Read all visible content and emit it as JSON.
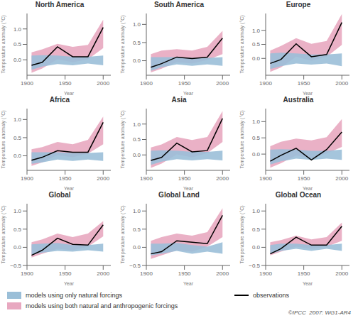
{
  "chart_data": [
    {
      "type": "line",
      "title": "North America",
      "xlabel": "Year",
      "ylabel": "Temperature anomaly (°C)",
      "x": [
        1906,
        1920,
        1940,
        1960,
        1980,
        2000
      ],
      "xlim": [
        1900,
        2010
      ],
      "xticks": [
        1900,
        1950,
        2000
      ],
      "ylim": [
        -0.5,
        1.5
      ],
      "yticks": [
        {
          "value": 0.0,
          "label": "0.0"
        },
        {
          "value": 0.5,
          "label": "0.5"
        },
        {
          "value": 1.0,
          "label": "1.0"
        }
      ],
      "series": [
        {
          "name": "models using both natural and anthropogenic forcings",
          "type": "band",
          "color": "#e8a8c0",
          "low": [
            -0.42,
            -0.28,
            0.02,
            -0.08,
            0.02,
            0.38
          ],
          "high": [
            0.24,
            0.34,
            0.52,
            0.42,
            0.48,
            1.3
          ]
        },
        {
          "name": "models using only natural forcings",
          "type": "band",
          "color": "#9bbfd8",
          "low": [
            -0.32,
            -0.22,
            -0.14,
            -0.18,
            -0.12,
            -0.18
          ],
          "high": [
            0.14,
            0.15,
            0.14,
            0.1,
            0.1,
            0.14
          ]
        },
        {
          "name": "observations",
          "type": "line",
          "color": "#000000",
          "values": [
            -0.18,
            -0.08,
            0.42,
            0.1,
            0.1,
            1.05
          ]
        }
      ]
    },
    {
      "type": "line",
      "title": "South America",
      "xlabel": "Year",
      "ylabel": "Temperature anomaly (°C)",
      "x": [
        1906,
        1920,
        1940,
        1960,
        1980,
        2000
      ],
      "xlim": [
        1900,
        2010
      ],
      "xticks": [
        1900,
        1950,
        2000
      ],
      "ylim": [
        -0.4,
        1.3
      ],
      "yticks": [
        {
          "value": 0.0,
          "label": "0.0"
        },
        {
          "value": 0.5,
          "label": "0.5"
        },
        {
          "value": 1.0,
          "label": "1.0"
        }
      ],
      "series": [
        {
          "name": "models using both natural and anthropogenic forcings",
          "type": "band",
          "color": "#e8a8c0",
          "low": [
            -0.32,
            -0.22,
            -0.04,
            -0.08,
            0.02,
            0.18
          ],
          "high": [
            0.18,
            0.28,
            0.32,
            0.28,
            0.38,
            0.82
          ]
        },
        {
          "name": "models using only natural forcings",
          "type": "band",
          "color": "#9bbfd8",
          "low": [
            -0.28,
            -0.18,
            -0.1,
            -0.14,
            -0.1,
            -0.14
          ],
          "high": [
            0.1,
            0.1,
            0.1,
            0.08,
            0.08,
            0.1
          ]
        },
        {
          "name": "observations",
          "type": "line",
          "color": "#000000",
          "values": [
            -0.18,
            -0.08,
            0.1,
            0.06,
            0.1,
            0.62
          ]
        }
      ]
    },
    {
      "type": "line",
      "title": "Europe",
      "xlabel": "Year",
      "ylabel": "Temperature anomaly (°C)",
      "x": [
        1906,
        1920,
        1940,
        1960,
        1980,
        2000
      ],
      "xlim": [
        1900,
        2010
      ],
      "xticks": [
        1900,
        1950,
        2000
      ],
      "ylim": [
        -0.6,
        1.6
      ],
      "yticks": [
        {
          "value": 0.0,
          "label": "0.0"
        },
        {
          "value": 0.5,
          "label": "0.5"
        },
        {
          "value": 1.0,
          "label": "1.0"
        }
      ],
      "series": [
        {
          "name": "models using both natural and anthropogenic forcings",
          "type": "band",
          "color": "#e8a8c0",
          "low": [
            -0.48,
            -0.32,
            0.06,
            -0.08,
            0.06,
            0.48
          ],
          "high": [
            0.28,
            0.44,
            0.72,
            0.52,
            0.62,
            1.58
          ]
        },
        {
          "name": "models using only natural forcings",
          "type": "band",
          "color": "#9bbfd8",
          "low": [
            -0.38,
            -0.28,
            -0.18,
            -0.22,
            -0.18,
            -0.28
          ],
          "high": [
            0.18,
            0.2,
            0.18,
            0.14,
            0.14,
            0.18
          ]
        },
        {
          "name": "observations",
          "type": "line",
          "color": "#000000",
          "values": [
            -0.18,
            -0.04,
            0.52,
            0.06,
            0.14,
            1.28
          ]
        }
      ]
    },
    {
      "type": "line",
      "title": "Africa",
      "xlabel": "Year",
      "ylabel": "Temperature anomaly (°C)",
      "x": [
        1906,
        1920,
        1940,
        1960,
        1980,
        2000
      ],
      "xlim": [
        1900,
        2010
      ],
      "xticks": [
        1900,
        1950,
        2000
      ],
      "ylim": [
        -0.4,
        1.3
      ],
      "yticks": [
        {
          "value": 0.0,
          "label": "0.0"
        },
        {
          "value": 0.5,
          "label": "0.5"
        },
        {
          "value": 1.0,
          "label": "1.0"
        }
      ],
      "series": [
        {
          "name": "models using both natural and anthropogenic forcings",
          "type": "band",
          "color": "#e8a8c0",
          "low": [
            -0.28,
            -0.18,
            0.02,
            -0.04,
            0.06,
            0.32
          ],
          "high": [
            0.18,
            0.24,
            0.38,
            0.32,
            0.44,
            1.08
          ]
        },
        {
          "name": "models using only natural forcings",
          "type": "band",
          "color": "#9bbfd8",
          "low": [
            -0.22,
            -0.18,
            -0.1,
            -0.14,
            -0.1,
            -0.14
          ],
          "high": [
            0.1,
            0.1,
            0.1,
            0.08,
            0.08,
            0.1
          ]
        },
        {
          "name": "observations",
          "type": "line",
          "color": "#000000",
          "values": [
            -0.12,
            -0.04,
            0.14,
            0.1,
            0.1,
            0.92
          ]
        }
      ]
    },
    {
      "type": "line",
      "title": "Asia",
      "xlabel": "Year",
      "ylabel": "Temperature anomaly (°C)",
      "x": [
        1906,
        1920,
        1940,
        1960,
        1980,
        2000
      ],
      "xlim": [
        1900,
        2010
      ],
      "xticks": [
        1900,
        1950,
        2000
      ],
      "ylim": [
        -0.5,
        1.5
      ],
      "yticks": [
        {
          "value": 0.0,
          "label": "0.0"
        },
        {
          "value": 0.5,
          "label": "0.5"
        },
        {
          "value": 1.0,
          "label": "1.0"
        }
      ],
      "series": [
        {
          "name": "models using both natural and anthropogenic forcings",
          "type": "band",
          "color": "#e8a8c0",
          "low": [
            -0.42,
            -0.28,
            0.02,
            -0.08,
            0.06,
            0.42
          ],
          "high": [
            0.24,
            0.34,
            0.58,
            0.48,
            0.58,
            1.42
          ]
        },
        {
          "name": "models using only natural forcings",
          "type": "band",
          "color": "#9bbfd8",
          "low": [
            -0.32,
            -0.22,
            -0.14,
            -0.18,
            -0.14,
            -0.18
          ],
          "high": [
            0.14,
            0.15,
            0.14,
            0.1,
            0.1,
            0.14
          ]
        },
        {
          "name": "observations",
          "type": "line",
          "color": "#000000",
          "values": [
            -0.18,
            -0.08,
            0.38,
            0.1,
            0.14,
            1.18
          ]
        }
      ]
    },
    {
      "type": "line",
      "title": "Australia",
      "xlabel": "Year",
      "ylabel": "Temperature anomaly (°C)",
      "x": [
        1906,
        1920,
        1940,
        1960,
        1980,
        2000
      ],
      "xlim": [
        1900,
        2010
      ],
      "xticks": [
        1900,
        1950,
        2000
      ],
      "ylim": [
        -0.5,
        1.4
      ],
      "yticks": [
        {
          "value": 0.0,
          "label": "0.0"
        },
        {
          "value": 0.5,
          "label": "0.5"
        },
        {
          "value": 1.0,
          "label": "1.0"
        }
      ],
      "series": [
        {
          "name": "models using both natural and anthropogenic forcings",
          "type": "band",
          "color": "#e8a8c0",
          "low": [
            -0.42,
            -0.28,
            -0.04,
            -0.14,
            0.02,
            0.22
          ],
          "high": [
            0.24,
            0.38,
            0.48,
            0.42,
            0.52,
            1.08
          ]
        },
        {
          "name": "models using only natural forcings",
          "type": "band",
          "color": "#9bbfd8",
          "low": [
            -0.32,
            -0.22,
            -0.14,
            -0.18,
            -0.14,
            -0.18
          ],
          "high": [
            0.14,
            0.15,
            0.14,
            0.1,
            0.1,
            0.14
          ]
        },
        {
          "name": "observations",
          "type": "line",
          "color": "#000000",
          "values": [
            -0.22,
            -0.04,
            0.18,
            -0.18,
            0.14,
            0.68
          ]
        }
      ]
    },
    {
      "type": "line",
      "title": "Global",
      "xlabel": "Year",
      "ylabel": "Temperature anomaly (°C)",
      "legend": "bottom",
      "annotation": "©IPCC  2007: WG1-AR4",
      "x": [
        1906,
        1920,
        1940,
        1960,
        1980,
        2000
      ],
      "xlim": [
        1900,
        2010
      ],
      "xticks": [
        1900,
        1950,
        2000
      ],
      "ylim": [
        -0.5,
        1.2
      ],
      "yticks": [
        {
          "value": -0.5,
          "label": "−0.5"
        },
        {
          "value": 0.0,
          "label": "0.0"
        },
        {
          "value": 0.5,
          "label": "0.5"
        },
        {
          "value": 1.0,
          "label": "1.0"
        }
      ],
      "series": [
        {
          "name": "models using both natural and anthropogenic forcings",
          "type": "band",
          "color": "#e8a8c0",
          "low": [
            -0.28,
            -0.18,
            -0.04,
            -0.08,
            0.02,
            0.3
          ],
          "high": [
            0.14,
            0.22,
            0.38,
            0.28,
            0.38,
            0.72
          ]
        },
        {
          "name": "models using only natural forcings",
          "type": "band",
          "color": "#9bbfd8",
          "low": [
            -0.2,
            -0.15,
            -0.1,
            -0.12,
            -0.08,
            -0.12
          ],
          "high": [
            0.08,
            0.1,
            0.12,
            0.06,
            0.06,
            0.1
          ]
        },
        {
          "name": "observations",
          "type": "line",
          "color": "#000000",
          "values": [
            -0.22,
            -0.08,
            0.25,
            0.08,
            0.06,
            0.62
          ]
        }
      ]
    },
    {
      "type": "line",
      "title": "Global Land",
      "xlabel": "Year",
      "ylabel": "Temperature anomaly (°C)",
      "x": [
        1906,
        1920,
        1940,
        1960,
        1980,
        2000
      ],
      "xlim": [
        1900,
        2010
      ],
      "xticks": [
        1900,
        1950,
        2000
      ],
      "ylim": [
        -0.5,
        1.2
      ],
      "yticks": [
        {
          "value": -0.5,
          "label": "−0.5"
        },
        {
          "value": 0.0,
          "label": "0.0"
        },
        {
          "value": 0.5,
          "label": "0.5"
        },
        {
          "value": 1.0,
          "label": "1.0"
        }
      ],
      "series": [
        {
          "name": "models using both natural and anthropogenic forcings",
          "type": "band",
          "color": "#e8a8c0",
          "low": [
            -0.32,
            -0.22,
            -0.08,
            -0.12,
            0.02,
            0.28
          ],
          "high": [
            0.18,
            0.28,
            0.38,
            0.32,
            0.42,
            1.08
          ]
        },
        {
          "name": "models using only natural forcings",
          "type": "band",
          "color": "#9bbfd8",
          "low": [
            -0.22,
            -0.18,
            -0.1,
            -0.18,
            -0.12,
            -0.18
          ],
          "high": [
            0.1,
            0.1,
            0.12,
            0.06,
            0.02,
            0.14
          ]
        },
        {
          "name": "observations",
          "type": "line",
          "color": "#000000",
          "values": [
            -0.18,
            -0.12,
            0.18,
            0.14,
            0.1,
            0.88
          ]
        }
      ]
    },
    {
      "type": "line",
      "title": "Global Ocean",
      "xlabel": "Year",
      "ylabel": "Temperature anomaly (°C)",
      "x": [
        1906,
        1920,
        1940,
        1960,
        1980,
        2000
      ],
      "xlim": [
        1900,
        2010
      ],
      "xticks": [
        1900,
        1950,
        2000
      ],
      "ylim": [
        -0.5,
        1.2
      ],
      "yticks": [
        {
          "value": -0.5,
          "label": "−0.5"
        },
        {
          "value": 0.0,
          "label": "0.0"
        },
        {
          "value": 0.5,
          "label": "0.5"
        },
        {
          "value": 1.0,
          "label": "1.0"
        }
      ],
      "series": [
        {
          "name": "models using both natural and anthropogenic forcings",
          "type": "band",
          "color": "#e8a8c0",
          "low": [
            -0.22,
            -0.12,
            0.02,
            -0.04,
            0.02,
            0.18
          ],
          "high": [
            0.14,
            0.2,
            0.32,
            0.22,
            0.28,
            0.68
          ]
        },
        {
          "name": "models using only natural forcings",
          "type": "band",
          "color": "#9bbfd8",
          "low": [
            -0.18,
            -0.1,
            -0.04,
            -0.1,
            -0.04,
            -0.1
          ],
          "high": [
            0.06,
            0.1,
            0.1,
            0.06,
            0.06,
            0.1
          ]
        },
        {
          "name": "observations",
          "type": "line",
          "color": "#000000",
          "values": [
            -0.18,
            -0.04,
            0.28,
            0.06,
            0.06,
            0.58
          ]
        }
      ]
    }
  ]
}
